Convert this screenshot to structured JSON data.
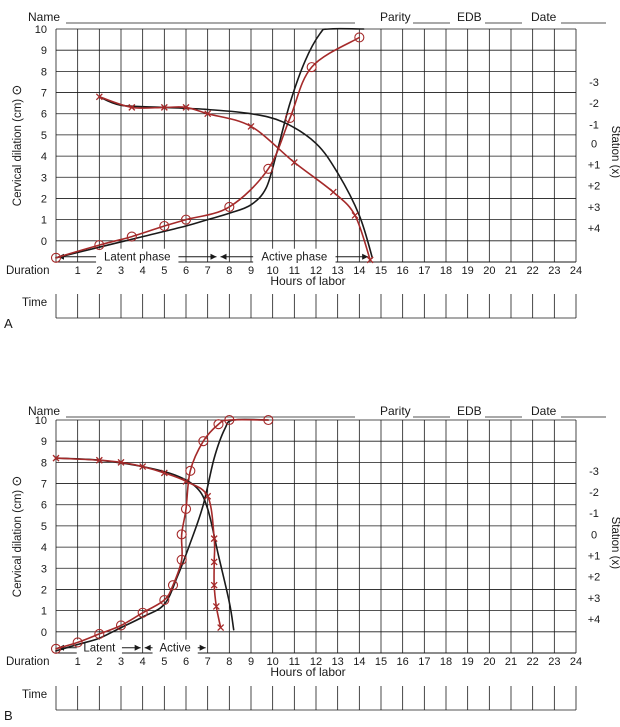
{
  "chart_data": [
    {
      "panel_label": "A",
      "type": "line",
      "header": {
        "name_label": "Name",
        "parity_label": "Parity",
        "edb_label": "EDB",
        "date_label": "Date"
      },
      "ylabel": "Cervical dilation (cm)",
      "ylabel_symbol": "⊙",
      "y2label": "Station (x)",
      "xlabel": "Hours of labor",
      "duration_label": "Duration",
      "time_label": "Time",
      "xlim": [
        0,
        24
      ],
      "ylim": [
        -1,
        10
      ],
      "x_ticks": [
        "1",
        "2",
        "3",
        "4",
        "5",
        "6",
        "7",
        "8",
        "9",
        "10",
        "11",
        "12",
        "13",
        "14",
        "15",
        "16",
        "17",
        "18",
        "19",
        "20",
        "21",
        "22",
        "23",
        "24"
      ],
      "y_ticks": [
        "0",
        "1",
        "2",
        "3",
        "4",
        "5",
        "6",
        "7",
        "8",
        "9",
        "10"
      ],
      "station_ticks": [
        {
          "label": "-3",
          "y": 7.5
        },
        {
          "label": "-2",
          "y": 6.5
        },
        {
          "label": "-1",
          "y": 5.5
        },
        {
          "label": "0",
          "y": 4.6
        },
        {
          "label": "+1",
          "y": 3.6
        },
        {
          "label": "+2",
          "y": 2.6
        },
        {
          "label": "+3",
          "y": 1.6
        },
        {
          "label": "+4",
          "y": 0.6
        }
      ],
      "phase_labels": [
        {
          "text": "Latent phase",
          "from": 0,
          "to": 7.5
        },
        {
          "text": "Active phase",
          "from": 7.5,
          "to": 14.5
        }
      ],
      "series": [
        {
          "role": "dilation-expected",
          "color": "#1a1a1a",
          "marker": "none",
          "points": [
            [
              0,
              -0.8
            ],
            [
              2,
              -0.3
            ],
            [
              4,
              0.2
            ],
            [
              6,
              0.7
            ],
            [
              7,
              1.0
            ],
            [
              8,
              1.3
            ],
            [
              9,
              1.7
            ],
            [
              9.7,
              2.5
            ],
            [
              10.2,
              4.2
            ],
            [
              10.8,
              6.5
            ],
            [
              11.5,
              8.5
            ],
            [
              12.2,
              9.8
            ],
            [
              12.6,
              10
            ],
            [
              14.2,
              10
            ]
          ]
        },
        {
          "role": "dilation-observed",
          "color": "#a52a2a",
          "marker": "circle",
          "points": [
            [
              0,
              -0.8
            ],
            [
              2,
              -0.2
            ],
            [
              3.5,
              0.2
            ],
            [
              5,
              0.7
            ],
            [
              6,
              1.0
            ],
            [
              8,
              1.6
            ],
            [
              9.8,
              3.4
            ],
            [
              10.8,
              5.8
            ],
            [
              11.8,
              8.2
            ],
            [
              14,
              9.6
            ]
          ]
        },
        {
          "role": "station-expected",
          "color": "#1a1a1a",
          "marker": "none",
          "points": [
            [
              2,
              6.8
            ],
            [
              3,
              6.4
            ],
            [
              5,
              6.3
            ],
            [
              7,
              6.2
            ],
            [
              9,
              6.0
            ],
            [
              10.5,
              5.6
            ],
            [
              12,
              4.6
            ],
            [
              13,
              3.2
            ],
            [
              14,
              1.2
            ],
            [
              14.6,
              -0.8
            ]
          ]
        },
        {
          "role": "station-observed",
          "color": "#a52a2a",
          "marker": "x",
          "points": [
            [
              2,
              6.8
            ],
            [
              3.5,
              6.3
            ],
            [
              5,
              6.3
            ],
            [
              6,
              6.3
            ],
            [
              7,
              6.0
            ],
            [
              9,
              5.4
            ],
            [
              11,
              3.7
            ],
            [
              12.8,
              2.3
            ],
            [
              13.8,
              1.2
            ],
            [
              14.5,
              -0.9
            ]
          ]
        }
      ]
    },
    {
      "panel_label": "B",
      "type": "line",
      "header": {
        "name_label": "Name",
        "parity_label": "Parity",
        "edb_label": "EDB",
        "date_label": "Date"
      },
      "ylabel": "Cervical dilation (cm)",
      "ylabel_symbol": "⊙",
      "y2label": "Station (x)",
      "xlabel": "Hours of labor",
      "duration_label": "Duration",
      "time_label": "Time",
      "xlim": [
        0,
        24
      ],
      "ylim": [
        -1,
        10
      ],
      "x_ticks": [
        "1",
        "2",
        "3",
        "4",
        "5",
        "6",
        "7",
        "8",
        "9",
        "10",
        "11",
        "12",
        "13",
        "14",
        "15",
        "16",
        "17",
        "18",
        "19",
        "20",
        "21",
        "22",
        "23",
        "24"
      ],
      "y_ticks": [
        "0",
        "1",
        "2",
        "3",
        "4",
        "5",
        "6",
        "7",
        "8",
        "9",
        "10"
      ],
      "station_ticks": [
        {
          "label": "-3",
          "y": 7.6
        },
        {
          "label": "-2",
          "y": 6.6
        },
        {
          "label": "-1",
          "y": 5.6
        },
        {
          "label": "0",
          "y": 4.6
        },
        {
          "label": "+1",
          "y": 3.6
        },
        {
          "label": "+2",
          "y": 2.6
        },
        {
          "label": "+3",
          "y": 1.6
        },
        {
          "label": "+4",
          "y": 0.6
        }
      ],
      "phase_labels": [
        {
          "text": "Latent",
          "from": 0,
          "to": 4
        },
        {
          "text": "Active",
          "from": 4,
          "to": 7
        }
      ],
      "series": [
        {
          "role": "dilation-expected",
          "color": "#1a1a1a",
          "marker": "none",
          "points": [
            [
              0,
              -0.9
            ],
            [
              1,
              -0.6
            ],
            [
              2,
              -0.3
            ],
            [
              3,
              0.2
            ],
            [
              4,
              0.7
            ],
            [
              5,
              1.3
            ],
            [
              5.6,
              2.6
            ],
            [
              6.2,
              4.2
            ],
            [
              6.8,
              6.0
            ],
            [
              7.3,
              8.2
            ],
            [
              7.8,
              9.6
            ],
            [
              8.2,
              10
            ],
            [
              9.8,
              10
            ]
          ]
        },
        {
          "role": "dilation-observed",
          "color": "#a52a2a",
          "marker": "circle",
          "points": [
            [
              0,
              -0.8
            ],
            [
              1,
              -0.5
            ],
            [
              2,
              -0.1
            ],
            [
              3,
              0.3
            ],
            [
              4,
              0.9
            ],
            [
              5,
              1.5
            ],
            [
              5.4,
              2.2
            ],
            [
              5.8,
              3.4
            ],
            [
              5.8,
              4.6
            ],
            [
              6,
              5.8
            ],
            [
              6.2,
              7.6
            ],
            [
              6.8,
              9.0
            ],
            [
              7.5,
              9.8
            ],
            [
              8,
              10
            ],
            [
              9.8,
              10
            ]
          ]
        },
        {
          "role": "station-expected",
          "color": "#1a1a1a",
          "marker": "none",
          "points": [
            [
              0,
              8.2
            ],
            [
              2,
              8.1
            ],
            [
              4,
              7.8
            ],
            [
              5.5,
              7.4
            ],
            [
              6.5,
              6.8
            ],
            [
              7,
              5.8
            ],
            [
              7.5,
              3.6
            ],
            [
              8.0,
              1.4
            ],
            [
              8.2,
              0.1
            ]
          ]
        },
        {
          "role": "station-observed",
          "color": "#a52a2a",
          "marker": "x",
          "points": [
            [
              0,
              8.2
            ],
            [
              2,
              8.1
            ],
            [
              3,
              8.0
            ],
            [
              4,
              7.8
            ],
            [
              5,
              7.5
            ],
            [
              6,
              7.1
            ],
            [
              7,
              6.4
            ],
            [
              7.3,
              4.4
            ],
            [
              7.3,
              3.3
            ],
            [
              7.3,
              2.2
            ],
            [
              7.4,
              1.2
            ],
            [
              7.6,
              0.2
            ]
          ]
        }
      ]
    }
  ]
}
